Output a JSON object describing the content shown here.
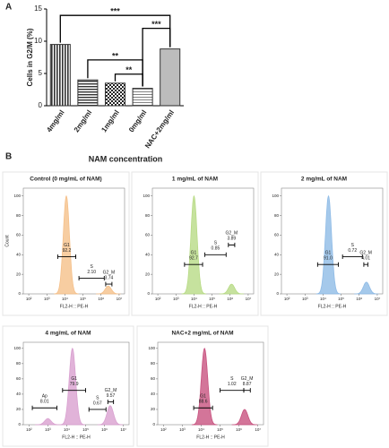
{
  "figure": {
    "panels": [
      "A",
      "B"
    ],
    "subtitle": "NAM concentration"
  },
  "chart_data": [
    {
      "type": "bar",
      "ylabel": "Cells in G2/M (%)",
      "categories": [
        "4mg/ml",
        "2mg/ml",
        "1mg/ml",
        "0mg/ml",
        "NAC+2mg/ml"
      ],
      "values": [
        9.5,
        4.0,
        3.5,
        2.7,
        8.8
      ],
      "color": "#333333",
      "ylim": [
        0,
        15
      ],
      "yticks": [
        0,
        5,
        10,
        15
      ],
      "annotations": [
        {
          "text": "***",
          "from": "4mg/ml",
          "to": "NAC+2mg/ml",
          "y": 14.0
        },
        {
          "text": "***",
          "from": "0mg/ml",
          "to": "NAC+2mg/ml",
          "y": 12.0
        },
        {
          "text": "**",
          "from": "2mg/ml",
          "to": "0mg/ml",
          "y": 7.1
        },
        {
          "text": "**",
          "from": "1mg/ml",
          "to": "0mg/ml",
          "y": 4.9
        }
      ]
    },
    {
      "type": "density",
      "title": "Control (0 mg/mL of NAM)",
      "xlabel": "FL2-H :: PE-H",
      "ylabel": "Count",
      "color": "#f5c08a",
      "xlim": [
        50,
        20000000
      ],
      "ylim": [
        0,
        108
      ],
      "log_x": true,
      "xticks": [
        {
          "value": 100,
          "label": "10²"
        },
        {
          "value": 1000,
          "label": "10³"
        },
        {
          "value": 10000,
          "label": "10⁴"
        },
        {
          "value": 100000,
          "label": "10⁵"
        },
        {
          "value": 1000000,
          "label": "10⁶"
        },
        {
          "value": 10000000,
          "label": "10⁷"
        }
      ],
      "yticks": [
        0,
        20,
        40,
        60,
        80,
        100
      ],
      "peaks": [
        {
          "x": 12000,
          "y": 100
        },
        {
          "x": 2500000,
          "y": 8
        }
      ],
      "gates": [
        {
          "name": "G1",
          "value": "92.2",
          "range": [
            4000,
            40000
          ],
          "y": 38
        },
        {
          "name": "S",
          "value": "2.10",
          "range": [
            60000,
            1500000
          ],
          "y": 16
        },
        {
          "name": "G2_M",
          "value": "3.74",
          "range": [
            1800000,
            4000000
          ],
          "y": 10
        }
      ]
    },
    {
      "type": "density",
      "title": "1 mg/mL of NAM",
      "xlabel": "FL2-H :: PE-H",
      "color": "#b8db86",
      "xlim": [
        50,
        20000000
      ],
      "ylim": [
        0,
        108
      ],
      "log_x": true,
      "xticks": [
        {
          "value": 100,
          "label": "10²"
        },
        {
          "value": 1000,
          "label": "10³"
        },
        {
          "value": 10000,
          "label": "10⁴"
        },
        {
          "value": 100000,
          "label": "10⁵"
        },
        {
          "value": 1000000,
          "label": "10⁶"
        },
        {
          "value": 10000000,
          "label": "10⁷"
        }
      ],
      "yticks": [
        0,
        20,
        40,
        60,
        80,
        100
      ],
      "peaks": [
        {
          "x": 10000,
          "y": 100
        },
        {
          "x": 1200000,
          "y": 10
        }
      ],
      "gates": [
        {
          "name": "G1",
          "value": "92.7",
          "range": [
            3000,
            30000
          ],
          "y": 30
        },
        {
          "name": "S",
          "value": "0.85",
          "range": [
            40000,
            600000
          ],
          "y": 40
        },
        {
          "name": "G2_M",
          "value": "3.89",
          "range": [
            800000,
            1800000
          ],
          "y": 50
        }
      ]
    },
    {
      "type": "density",
      "title": "2 mg/mL of NAM",
      "xlabel": "FL2-H :: PE-H",
      "color": "#8fbbe6",
      "xlim": [
        50,
        20000000
      ],
      "ylim": [
        0,
        108
      ],
      "log_x": true,
      "xticks": [
        {
          "value": 100,
          "label": "10²"
        },
        {
          "value": 1000,
          "label": "10³"
        },
        {
          "value": 10000,
          "label": "10⁴"
        },
        {
          "value": 100000,
          "label": "10⁵"
        },
        {
          "value": 1000000,
          "label": "10⁶"
        },
        {
          "value": 10000000,
          "label": "10⁷"
        }
      ],
      "yticks": [
        0,
        20,
        40,
        60,
        80,
        100
      ],
      "peaks": [
        {
          "x": 20000,
          "y": 100
        },
        {
          "x": 2500000,
          "y": 12
        }
      ],
      "gates": [
        {
          "name": "G1",
          "value": "91.0",
          "range": [
            5000,
            70000
          ],
          "y": 30
        },
        {
          "name": "S",
          "value": "0.72",
          "range": [
            120000,
            1500000
          ],
          "y": 38
        },
        {
          "name": "G2_M",
          "value": "4.01",
          "range": [
            1800000,
            3000000
          ],
          "y": 30
        }
      ]
    },
    {
      "type": "density",
      "title": "4 mg/mL of NAM",
      "xlabel": "FL2-H :: PE-H",
      "color": "#d9a0d0",
      "xlim": [
        50,
        20000000
      ],
      "ylim": [
        0,
        108
      ],
      "log_x": true,
      "xticks": [
        {
          "value": 100,
          "label": "10²"
        },
        {
          "value": 1000,
          "label": "10³"
        },
        {
          "value": 10000,
          "label": "10⁴"
        },
        {
          "value": 100000,
          "label": "10⁵"
        },
        {
          "value": 1000000,
          "label": "10⁶"
        },
        {
          "value": 10000000,
          "label": "10⁷"
        }
      ],
      "yticks": [
        0,
        20,
        40,
        60,
        80,
        100
      ],
      "peaks": [
        {
          "x": 1000,
          "y": 8
        },
        {
          "x": 20000,
          "y": 100
        },
        {
          "x": 2000000,
          "y": 25
        }
      ],
      "gates": [
        {
          "name": "Ap",
          "value": "8.01",
          "range": [
            150,
            3000
          ],
          "y": 22
        },
        {
          "name": "G1",
          "value": "79.9",
          "range": [
            6000,
            100000
          ],
          "y": 45
        },
        {
          "name": "S",
          "value": "0.67",
          "range": [
            150000,
            1200000
          ],
          "y": 20
        },
        {
          "name": "G2_M",
          "value": "9.57",
          "range": [
            1500000,
            3000000
          ],
          "y": 30
        }
      ]
    },
    {
      "type": "density",
      "title": "NAC+2 mg/mL of NAM",
      "xlabel": "FL2-H :: PE-H",
      "color": "#c8527f",
      "xlim": [
        50,
        20000000
      ],
      "ylim": [
        0,
        108
      ],
      "log_x": true,
      "xticks": [
        {
          "value": 100,
          "label": "10²"
        },
        {
          "value": 1000,
          "label": "10³"
        },
        {
          "value": 10000,
          "label": "10⁴"
        },
        {
          "value": 100000,
          "label": "10⁵"
        },
        {
          "value": 1000000,
          "label": "10⁶"
        },
        {
          "value": 10000000,
          "label": "10⁷"
        }
      ],
      "yticks": [
        0,
        20,
        40,
        60,
        80,
        100
      ],
      "peaks": [
        {
          "x": 15000,
          "y": 100
        },
        {
          "x": 2000000,
          "y": 20
        }
      ],
      "gates": [
        {
          "name": "G1",
          "value": "88.6",
          "range": [
            4000,
            40000
          ],
          "y": 22
        },
        {
          "name": "S",
          "value": "1.02",
          "range": [
            100000,
            1800000
          ],
          "y": 45
        },
        {
          "name": "G2_M",
          "value": "8.87",
          "range": [
            1800000,
            4000000
          ],
          "y": 45
        }
      ]
    }
  ]
}
